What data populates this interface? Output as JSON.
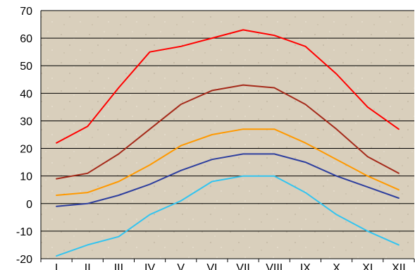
{
  "chart_data": {
    "type": "line",
    "categories": [
      "I",
      "II",
      "III",
      "IV",
      "V",
      "VI",
      "VII",
      "VIII",
      "IX",
      "X",
      "XI",
      "XII"
    ],
    "ylim": [
      -20,
      70
    ],
    "yticks": [
      -20,
      -10,
      0,
      10,
      20,
      30,
      40,
      50,
      60,
      70
    ],
    "grid": true,
    "legend": "none",
    "series": [
      {
        "color": "#ff0000",
        "values": [
          22,
          28,
          42,
          55,
          57,
          60,
          63,
          61,
          57,
          47,
          35,
          27
        ]
      },
      {
        "color": "#a52a1a",
        "values": [
          9,
          11,
          18,
          27,
          36,
          41,
          43,
          42,
          36,
          27,
          17,
          11
        ]
      },
      {
        "color": "#ff9900",
        "values": [
          3,
          4,
          8,
          14,
          21,
          25,
          27,
          27,
          22,
          16,
          10,
          5
        ]
      },
      {
        "color": "#2e3f9e",
        "values": [
          -1,
          0,
          3,
          7,
          12,
          16,
          18,
          18,
          15,
          10,
          6,
          2
        ]
      },
      {
        "color": "#33c4f0",
        "values": [
          -19,
          -15,
          -12,
          -4,
          1,
          8,
          10,
          10,
          4,
          -4,
          -10,
          -15
        ]
      }
    ],
    "background": "#d9cfbc"
  }
}
